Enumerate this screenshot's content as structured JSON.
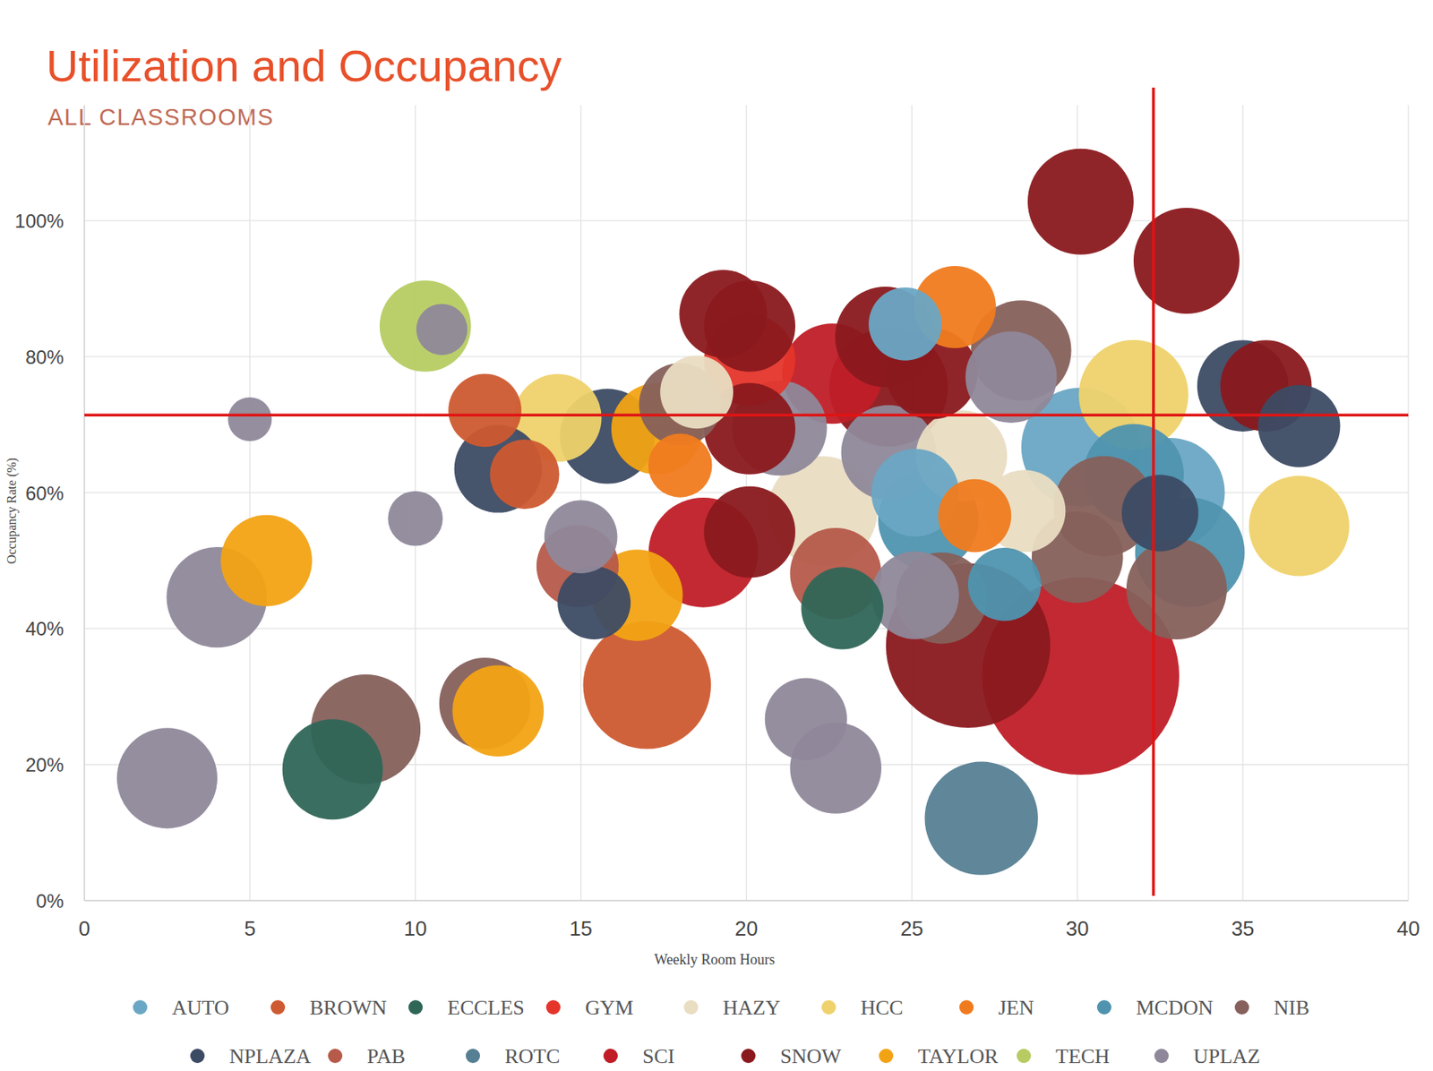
{
  "chart_data": {
    "type": "bubble",
    "title": "Utilization and Occupancy",
    "subtitle": "ALL CLASSROOMS",
    "x_label": "Weekly Room Hours",
    "y_label": "Occupancy Rate (%)",
    "xlim": [
      0,
      40
    ],
    "xticks": [
      0,
      5,
      10,
      15,
      20,
      25,
      30,
      35,
      40
    ],
    "ylim": [
      0,
      117
    ],
    "yticks": [
      {
        "value": 0,
        "label": "0%"
      },
      {
        "value": 20,
        "label": "20%"
      },
      {
        "value": 40,
        "label": "40%"
      },
      {
        "value": 60,
        "label": "60%"
      },
      {
        "value": 80,
        "label": "80%"
      },
      {
        "value": 100,
        "label": "100%"
      }
    ],
    "grid": true,
    "legend": "bottom",
    "reference_lines": {
      "x": 32.3,
      "y": 71.4,
      "color": "#e01414"
    },
    "series": [
      {
        "name": "AUTO",
        "color": "#6aa7c4",
        "x": [
          30.1,
          32.8,
          25.1,
          24.8
        ],
        "values": [
          66.7,
          60,
          60,
          84.8
        ],
        "sizes": [
          65,
          60,
          48,
          40
        ]
      },
      {
        "name": "BROWN",
        "color": "#cd5a30",
        "x": [
          12.1,
          13.3,
          17.0
        ],
        "values": [
          72.1,
          62.7,
          31.7
        ],
        "sizes": [
          40,
          38,
          70
        ]
      },
      {
        "name": "ECCLES",
        "color": "#2f6657",
        "x": [
          7.5,
          22.9
        ],
        "values": [
          19.3,
          43
        ],
        "sizes": [
          55,
          45
        ]
      },
      {
        "name": "GYM",
        "color": "#e4352b",
        "x": [
          20.1
        ],
        "values": [
          79.5
        ],
        "sizes": [
          50
        ]
      },
      {
        "name": "HAZY",
        "color": "#e9ddc2",
        "x": [
          22.3,
          26.5,
          28.4,
          18.5
        ],
        "values": [
          57.3,
          65.4,
          57.3,
          74.8
        ],
        "sizes": [
          60,
          50,
          45,
          40
        ]
      },
      {
        "name": "HCC",
        "color": "#efd26c",
        "x": [
          14.3,
          31.7,
          36.7
        ],
        "values": [
          71,
          74.4,
          55.1
        ],
        "sizes": [
          48,
          60,
          55
        ]
      },
      {
        "name": "JEN",
        "color": "#f07b1f",
        "x": [
          26.3,
          26.9,
          18.0
        ],
        "values": [
          87.3,
          56.6,
          64
        ],
        "sizes": [
          45,
          40,
          35
        ]
      },
      {
        "name": "MCDON",
        "color": "#4f93af",
        "x": [
          25.5,
          31.7,
          33.4,
          27.8
        ],
        "values": [
          56,
          62.7,
          51.2,
          46.5
        ],
        "sizes": [
          55,
          55,
          60,
          40
        ]
      },
      {
        "name": "NIB",
        "color": "#86605b",
        "x": [
          8.5,
          12.1,
          25.9,
          28.3,
          30.8,
          30.0,
          33.0,
          18.0
        ],
        "values": [
          25.2,
          29,
          44.5,
          80.9,
          58,
          50.5,
          45.8,
          73
        ],
        "sizes": [
          60,
          50,
          50,
          55,
          55,
          50,
          55,
          45
        ]
      },
      {
        "name": "NPLAZA",
        "color": "#3c4b64",
        "x": [
          12.5,
          15.8,
          15.4,
          32.5,
          35.0,
          36.7
        ],
        "values": [
          63.5,
          68.3,
          43.8,
          57,
          75.7,
          69.8
        ],
        "sizes": [
          48,
          52,
          40,
          42,
          50,
          45
        ]
      },
      {
        "name": "PAB",
        "color": "#b65a4a",
        "x": [
          22.7,
          14.9
        ],
        "values": [
          48.1,
          49.2
        ],
        "sizes": [
          50,
          45
        ]
      },
      {
        "name": "ROTC",
        "color": "#567f93",
        "x": [
          27.1
        ],
        "values": [
          12.1
        ],
        "sizes": [
          62
        ]
      },
      {
        "name": "SCI",
        "color": "#c01d27",
        "x": [
          30.1,
          18.7,
          22.6
        ],
        "values": [
          33,
          51.2,
          77.5
        ],
        "sizes": [
          108,
          60,
          55
        ]
      },
      {
        "name": "SNOW",
        "color": "#8a191e",
        "x": [
          30.1,
          33.3,
          35.7,
          19.3,
          20.1,
          24.2,
          24.3,
          26.7,
          20.1,
          20.1,
          25.6
        ],
        "values": [
          102.8,
          94.1,
          75.7,
          86.3,
          84.5,
          82.9,
          75.5,
          37.5,
          54.2,
          69.4,
          77.5
        ],
        "sizes": [
          58,
          58,
          50,
          48,
          50,
          55,
          65,
          90,
          50,
          50,
          50
        ]
      },
      {
        "name": "TAYLOR",
        "color": "#f2a314",
        "x": [
          5.5,
          12.5,
          17.3,
          16.7
        ],
        "values": [
          50,
          27.9,
          69.4,
          44.9
        ],
        "sizes": [
          50,
          50,
          50,
          50
        ]
      },
      {
        "name": "TECH",
        "color": "#b6cc62",
        "x": [
          10.3
        ],
        "values": [
          84.5
        ],
        "sizes": [
          50
        ]
      },
      {
        "name": "UPLAZ",
        "color": "#8f889a",
        "x": [
          2.5,
          4.0,
          5.0,
          10.0,
          10.8,
          15.0,
          21.0,
          21.8,
          22.7,
          24.3,
          25.1,
          28.0
        ],
        "values": [
          18,
          44.6,
          70.8,
          56.2,
          84,
          53.5,
          69.5,
          26.7,
          19.5,
          65.9,
          44.9,
          77
        ],
        "sizes": [
          55,
          55,
          24,
          30,
          28,
          40,
          52,
          45,
          50,
          52,
          48,
          50
        ]
      }
    ]
  }
}
